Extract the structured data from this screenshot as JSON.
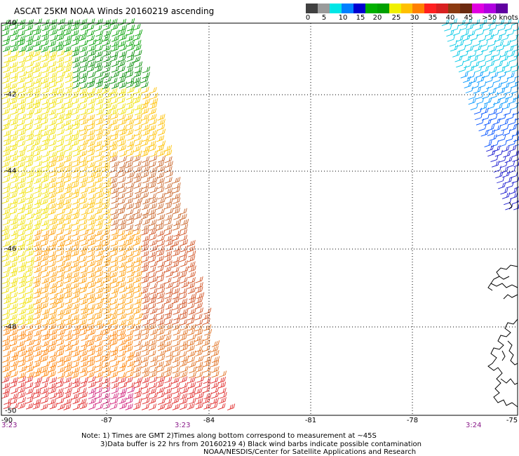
{
  "title": "ASCAT 25KM NOAA Winds 20160219 ascending",
  "colorbar": {
    "colors": [
      "#404040",
      "#9a9a9a",
      "#00e6e6",
      "#0080ff",
      "#0000d0",
      "#00b000",
      "#00a000",
      "#f0f000",
      "#ffc000",
      "#ff8000",
      "#ff2020",
      "#d82020",
      "#8b3a10",
      "#6b2a10",
      "#e000e0",
      "#b000e0",
      "#6000a0"
    ],
    "labels": [
      "0",
      "5",
      "10",
      "15",
      "20",
      "25",
      "30",
      "35",
      "40",
      "45",
      ">50 knots"
    ]
  },
  "map": {
    "lon_labels": [
      "-87",
      "-84",
      "-81",
      "-78",
      "-75"
    ],
    "lat_labels": [
      "-40",
      "-42",
      "-44",
      "-46",
      "-48",
      "-50"
    ],
    "time_labels": [
      "3:23",
      "3:23",
      "3:24"
    ],
    "corner_lon": "-90",
    "corner_lat": "-50"
  },
  "footer": {
    "line1": "Note: 1) Times are GMT 2)Times along bottom correspond to measurement at ~45S",
    "line2": "3)Data buffer is 22 hrs from 20160219 4) Black wind barbs indicate possible contamination",
    "line3": "NOAA/NESDIS/Center for Satellite Applications and Research"
  }
}
